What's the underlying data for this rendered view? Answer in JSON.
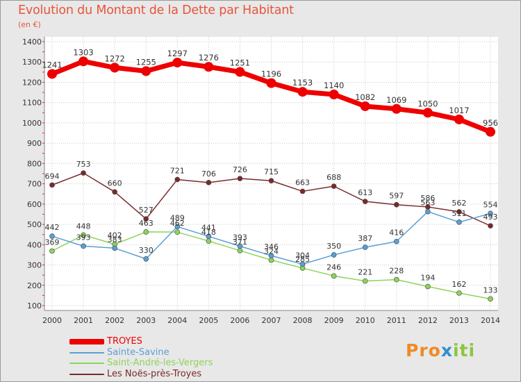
{
  "title": "Evolution du Montant de la Dette par Habitant",
  "unit": "(en €)",
  "logo": {
    "p1": "Pro",
    "p2": "x",
    "p3": "iti"
  },
  "chart_data": {
    "type": "line",
    "title": "Evolution du Montant de la Dette par Habitant",
    "subtitle": "(en €)",
    "x": [
      "2000",
      "2001",
      "2002",
      "2003",
      "2004",
      "2005",
      "2006",
      "2007",
      "2008",
      "2009",
      "2010",
      "2011",
      "2012",
      "2013",
      "2014"
    ],
    "yticks": [
      100,
      200,
      300,
      400,
      500,
      600,
      700,
      800,
      900,
      1000,
      1100,
      1200,
      1300,
      1400
    ],
    "ylim": [
      100,
      1400
    ],
    "grid": true,
    "legend": "bottom-left",
    "series": [
      {
        "name": "TROYES",
        "color": "#ee0000",
        "width": 7,
        "marker": 7,
        "values": [
          1241,
          1303,
          1272,
          1255,
          1297,
          1276,
          1251,
          1196,
          1153,
          1140,
          1082,
          1069,
          1050,
          1017,
          956
        ],
        "labels": [
          1241,
          1303,
          1272,
          1255,
          1297,
          1276,
          1251,
          1196,
          1153,
          1140,
          1082,
          1069,
          1050,
          1017,
          956
        ]
      },
      {
        "name": "Sainte-Savine",
        "color": "#5a9fd4",
        "width": 1.5,
        "marker": 3.5,
        "values": [
          442,
          393,
          383,
          330,
          489,
          441,
          393,
          346,
          304,
          350,
          387,
          416,
          563,
          511,
          554
        ],
        "labels": [
          442,
          393,
          383,
          330,
          489,
          441,
          393,
          346,
          304,
          350,
          387,
          416,
          563,
          511,
          554
        ]
      },
      {
        "name": "Saint-André-les-Vergers",
        "color": "#8ed35a",
        "width": 1.5,
        "marker": 3.5,
        "values": [
          369,
          448,
          402,
          463,
          462,
          418,
          371,
          324,
          285,
          246,
          221,
          228,
          194,
          162,
          133
        ],
        "labels": [
          369,
          448,
          402,
          463,
          462,
          418,
          371,
          324,
          285,
          246,
          221,
          228,
          194,
          162,
          133
        ]
      },
      {
        "name": "Les Noës-près-Troyes",
        "color": "#7a2a2a",
        "width": 1.5,
        "marker": 3.5,
        "values": [
          694,
          753,
          660,
          527,
          721,
          706,
          726,
          715,
          663,
          688,
          613,
          597,
          586,
          562,
          493
        ],
        "labels": [
          694,
          753,
          660,
          527,
          721,
          706,
          726,
          715,
          663,
          688,
          613,
          597,
          586,
          562,
          493
        ]
      }
    ]
  }
}
